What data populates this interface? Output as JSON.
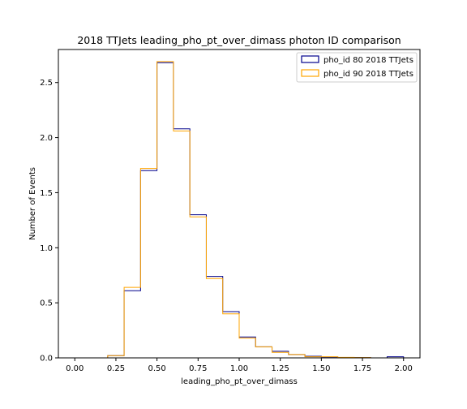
{
  "chart_data": {
    "type": "histogram-step",
    "title": "2018 TTJets leading_pho_pt_over_dimass photon ID comparison",
    "xlabel": "leading_pho_pt_over_dimass",
    "ylabel": "Number of Events",
    "xlim": [
      -0.1,
      2.1
    ],
    "ylim": [
      0,
      2.8
    ],
    "xticks": [
      "0.00",
      "0.25",
      "0.50",
      "0.75",
      "1.00",
      "1.25",
      "1.50",
      "1.75",
      "2.00"
    ],
    "yticks": [
      "0.0",
      "0.5",
      "1.0",
      "1.5",
      "2.0",
      "2.5"
    ],
    "bin_edges": [
      0.0,
      0.1,
      0.2,
      0.3,
      0.4,
      0.5,
      0.6,
      0.7,
      0.8,
      0.9,
      1.0,
      1.1,
      1.2,
      1.3,
      1.4,
      1.5,
      1.6,
      1.7,
      1.8,
      1.9,
      2.0
    ],
    "legend_position": "top-right",
    "series": [
      {
        "name": "pho_id 80 2018 TTJets",
        "color": "#00008b",
        "values": [
          0,
          0,
          0.02,
          0.61,
          1.7,
          2.68,
          2.08,
          1.3,
          0.74,
          0.42,
          0.19,
          0.1,
          0.06,
          0.03,
          0.015,
          0.008,
          0.004,
          0.003,
          0,
          0.01
        ]
      },
      {
        "name": "pho_id 90 2018 TTJets",
        "color": "#ffa500",
        "values": [
          0,
          0,
          0.02,
          0.64,
          1.72,
          2.69,
          2.06,
          1.28,
          0.72,
          0.4,
          0.18,
          0.1,
          0.05,
          0.03,
          0.01,
          0.01,
          0.005,
          0.003,
          0,
          0
        ]
      }
    ]
  }
}
